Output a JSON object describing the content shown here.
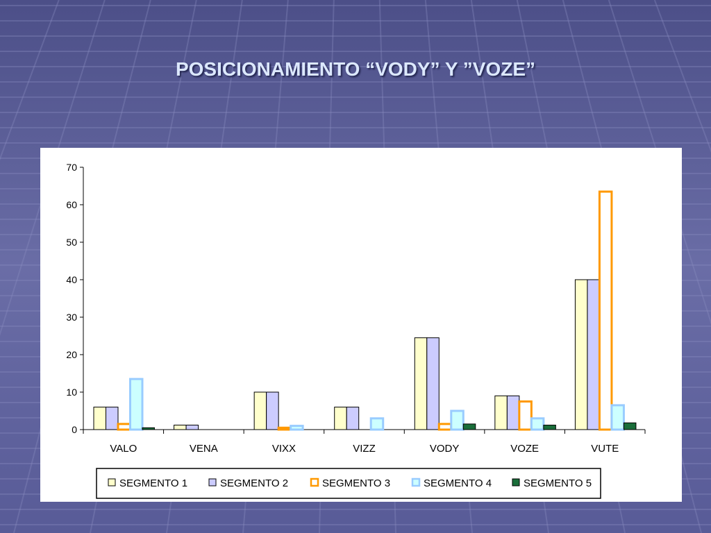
{
  "slide": {
    "title": "POSICIONAMIENTO “VODY” Y ”VOZE”"
  },
  "chart_data": {
    "type": "bar",
    "title": "",
    "xlabel": "",
    "ylabel": "",
    "ylim": [
      0,
      70
    ],
    "yticks": [
      0,
      10,
      20,
      30,
      40,
      50,
      60,
      70
    ],
    "grid": false,
    "legend_position": "bottom",
    "categories": [
      "VALO",
      "VENA",
      "VIXX",
      "VIZZ",
      "VODY",
      "VOZE",
      "VUTE"
    ],
    "series": [
      {
        "name": "SEGMENTO 1",
        "values": [
          6,
          1.2,
          10,
          6,
          24.5,
          9,
          40
        ],
        "fill": "#ffffcc",
        "stroke": "#000000"
      },
      {
        "name": "SEGMENTO 2",
        "values": [
          6,
          1.2,
          10,
          6,
          24.5,
          9,
          40
        ],
        "fill": "#ccccff",
        "stroke": "#000000"
      },
      {
        "name": "SEGMENTO 3",
        "values": [
          1.5,
          0,
          0.5,
          0,
          1.5,
          7.5,
          63.5
        ],
        "fill": "#ffffff",
        "stroke": "#ff9900"
      },
      {
        "name": "SEGMENTO 4",
        "values": [
          13.5,
          0,
          1,
          3,
          5,
          3,
          6.5
        ],
        "fill": "#ccffff",
        "stroke": "#99ccff"
      },
      {
        "name": "SEGMENTO 5",
        "values": [
          0.5,
          0,
          0,
          0,
          1.5,
          1.2,
          1.8
        ],
        "fill": "#1a6e3a",
        "stroke": "#000000"
      }
    ]
  }
}
